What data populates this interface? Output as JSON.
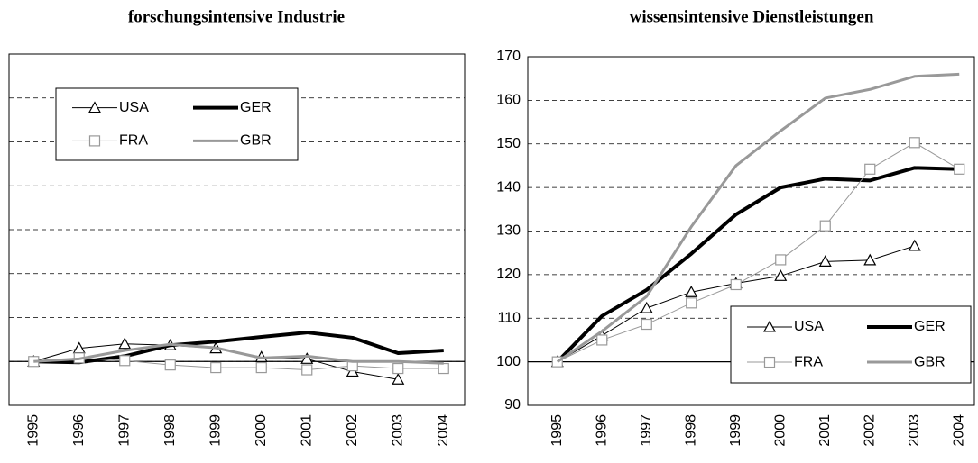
{
  "chart_data": [
    {
      "type": "line",
      "title": "forschungsintensive Industrie",
      "categories": [
        "1995",
        "1996",
        "1997",
        "1998",
        "1999",
        "2000",
        "2001",
        "2002",
        "2003",
        "2004"
      ],
      "ylim": [
        90,
        170
      ],
      "yticks": [
        90,
        100,
        110,
        120,
        130,
        140,
        150,
        160,
        170
      ],
      "ytick_labels": false,
      "grid": true,
      "x_axis_at": 100,
      "legend": "upper left",
      "series": [
        {
          "name": "USA",
          "color": "#000000",
          "line_width": 1,
          "marker": "triangle",
          "values": [
            100,
            103,
            104,
            103.7,
            103,
            101,
            100.6,
            97.7,
            95.9,
            null
          ]
        },
        {
          "name": "GER",
          "color": "#000000",
          "line_width": 4,
          "marker": null,
          "values": [
            100,
            99.8,
            101.2,
            103.7,
            104.5,
            105.6,
            106.6,
            105.4,
            101.9,
            102.5
          ]
        },
        {
          "name": "FRA",
          "color": "#999999",
          "line_width": 1,
          "marker": "square",
          "values": [
            100,
            100.8,
            100.2,
            99.2,
            98.6,
            98.6,
            98.1,
            99,
            98.4,
            98.4
          ]
        },
        {
          "name": "GBR",
          "color": "#999999",
          "line_width": 3,
          "marker": null,
          "values": [
            100,
            100.6,
            102.5,
            103.9,
            103.1,
            100.8,
            101.2,
            100,
            100,
            99.6
          ]
        }
      ]
    },
    {
      "type": "line",
      "title": "wissensintensive Dienstleistungen",
      "categories": [
        "1995",
        "1996",
        "1997",
        "1998",
        "1999",
        "2000",
        "2001",
        "2002",
        "2003",
        "2004"
      ],
      "ylim": [
        90,
        170
      ],
      "yticks": [
        90,
        100,
        110,
        120,
        130,
        140,
        150,
        160,
        170
      ],
      "ytick_labels": true,
      "grid": true,
      "x_axis_at": 100,
      "legend": "lower right",
      "series": [
        {
          "name": "USA",
          "color": "#000000",
          "line_width": 1,
          "marker": "triangle",
          "values": [
            100,
            106,
            112.3,
            116,
            118,
            119.7,
            123,
            123.3,
            126.6,
            null
          ]
        },
        {
          "name": "GER",
          "color": "#000000",
          "line_width": 4,
          "marker": null,
          "values": [
            100,
            110.5,
            116.5,
            124.8,
            133.8,
            140,
            142,
            141.6,
            144.5,
            144.2
          ]
        },
        {
          "name": "FRA",
          "color": "#999999",
          "line_width": 1,
          "marker": "square",
          "values": [
            100,
            105,
            108.6,
            113.5,
            117.7,
            123.4,
            131.2,
            144.2,
            150.3,
            144.2
          ]
        },
        {
          "name": "GBR",
          "color": "#999999",
          "line_width": 3,
          "marker": null,
          "values": [
            100,
            107,
            115,
            131,
            145,
            153,
            160.5,
            162.5,
            165.5,
            166
          ]
        }
      ]
    }
  ]
}
